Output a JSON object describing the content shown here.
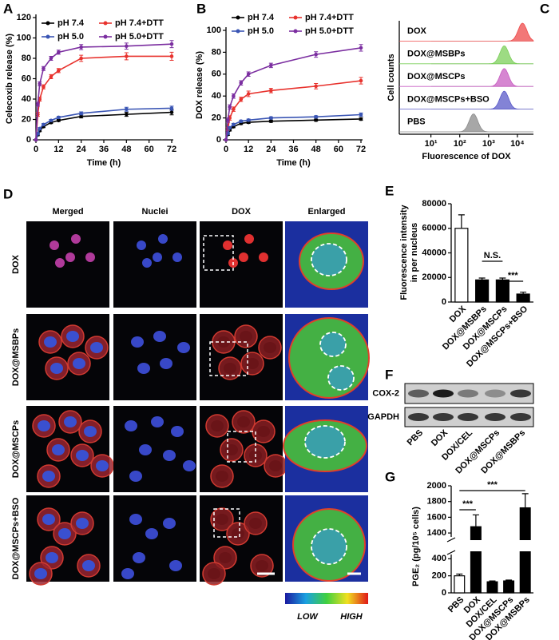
{
  "chart_data": [
    {
      "panel": "A",
      "type": "line",
      "xlabel": "Time  (h)",
      "ylabel": "Celecoxib release (%)",
      "x": [
        0,
        1,
        2,
        4,
        8,
        12,
        24,
        48,
        72
      ],
      "xlim": [
        0,
        72
      ],
      "xticks": [
        0,
        12,
        24,
        36,
        48,
        60,
        72
      ],
      "ylim": [
        0,
        120
      ],
      "yticks": [
        0,
        20,
        40,
        60,
        80,
        100,
        120
      ],
      "series": [
        {
          "name": "pH 7.4",
          "color": "#000000",
          "values": [
            0,
            5,
            9,
            13,
            17,
            19,
            23,
            25,
            27
          ],
          "errors": [
            0,
            1,
            1,
            1,
            1,
            1,
            1.5,
            2,
            2.5
          ]
        },
        {
          "name": "pH 7.4+DTT",
          "color": "#e8332e",
          "values": [
            0,
            25,
            40,
            52,
            62,
            68,
            80,
            82,
            82
          ],
          "errors": [
            0,
            2,
            2,
            2,
            2,
            2,
            3,
            3.5,
            4
          ]
        },
        {
          "name": "pH 5.0",
          "color": "#3a55b4",
          "values": [
            0,
            6,
            11,
            15,
            19,
            22,
            26,
            30,
            31
          ],
          "errors": [
            0,
            1,
            1,
            1,
            1,
            1,
            1.5,
            2,
            2
          ]
        },
        {
          "name": "pH 5.0+DTT",
          "color": "#7b2ea0",
          "values": [
            0,
            35,
            55,
            70,
            80,
            86,
            91,
            92,
            94
          ],
          "errors": [
            0,
            2,
            2,
            2,
            2,
            2,
            2.5,
            3,
            3.5
          ]
        }
      ]
    },
    {
      "panel": "B",
      "type": "line",
      "xlabel": "Time  (h)",
      "ylabel": "DOX release (%)",
      "x": [
        0,
        1,
        2,
        4,
        8,
        12,
        24,
        48,
        72
      ],
      "xlim": [
        0,
        72
      ],
      "xticks": [
        0,
        12,
        24,
        36,
        48,
        60,
        72
      ],
      "ylim": [
        0,
        100
      ],
      "yticks": [
        0,
        20,
        40,
        60,
        80,
        100
      ],
      "series": [
        {
          "name": "pH 7.4",
          "color": "#000000",
          "values": [
            0,
            5,
            9,
            12,
            15,
            16,
            17,
            18,
            19
          ],
          "errors": [
            0,
            1,
            1,
            1,
            1,
            1,
            1,
            1,
            1.2
          ]
        },
        {
          "name": "pH 7.4+DTT",
          "color": "#e8332e",
          "values": [
            0,
            10,
            20,
            28,
            37,
            42,
            45,
            49,
            54
          ],
          "errors": [
            0,
            1.5,
            2,
            2,
            2,
            2.5,
            2,
            2.5,
            3
          ]
        },
        {
          "name": "pH 5.0",
          "color": "#3a55b4",
          "values": [
            0,
            6,
            11,
            14,
            17,
            18,
            20,
            21,
            23
          ],
          "errors": [
            0,
            1,
            1,
            1,
            1,
            1,
            1,
            1,
            1.5
          ]
        },
        {
          "name": "pH 5.0+DTT",
          "color": "#7b2ea0",
          "values": [
            0,
            18,
            30,
            40,
            52,
            60,
            68,
            78,
            84
          ],
          "errors": [
            0,
            2,
            2,
            2,
            2,
            2,
            2,
            2.5,
            3
          ]
        }
      ]
    },
    {
      "panel": "C",
      "type": "ridgeline",
      "xlabel": "Fluorescence of DOX",
      "ylabel": "Cell counts",
      "log_x": true,
      "categories": [
        "DOX",
        "DOX@MSBPs",
        "DOX@MSCPs",
        "DOX@MSCPs+BSO",
        "PBS"
      ],
      "values": [
        15000,
        3500,
        3500,
        3500,
        300
      ],
      "colors": [
        "#ee4a4a",
        "#7ccf5a",
        "#c85ec2",
        "#5a5ac8",
        "#8a8a8a"
      ],
      "xlim": [
        0.8,
        36000
      ],
      "xticks": [
        {
          "value": 10,
          "label": "10¹"
        },
        {
          "value": 100,
          "label": "10²"
        },
        {
          "value": 1000,
          "label": "10³"
        },
        {
          "value": 10000,
          "label": "10⁴"
        }
      ]
    },
    {
      "panel": "E",
      "type": "bar",
      "ylabel": [
        "Fluorescence intensity",
        "in per nucleus"
      ],
      "categories": [
        "DOX",
        "DOX@MSBPs",
        "DOX@MSCPs",
        "DOX@MSCPs+BSO"
      ],
      "values": [
        60000,
        18000,
        18000,
        6500
      ],
      "errors": [
        11000,
        1500,
        1500,
        1500
      ],
      "colors": [
        "#ffffff",
        "#000000",
        "#000000",
        "#000000"
      ],
      "ylim": [
        0,
        80000
      ],
      "yticks": [
        0,
        20000,
        40000,
        60000,
        80000
      ],
      "annotations": [
        "N.S.",
        "***"
      ]
    },
    {
      "panel": "G",
      "type": "bar",
      "ylabel": "PGE₂ (pg/10⁵ cells)",
      "categories": [
        "PBS",
        "DOX",
        "DOX/CEL",
        "DOX@MSCPs",
        "DOX@MSBPs"
      ],
      "values": [
        200,
        1480,
        130,
        140,
        1720
      ],
      "errors": [
        20,
        150,
        10,
        10,
        180
      ],
      "colors": [
        "#ffffff",
        "#000000",
        "#000000",
        "#000000",
        "#000000"
      ],
      "ylim": [
        0,
        2000
      ],
      "ybreak": [
        450,
        1350
      ],
      "yticks": [
        0,
        200,
        400,
        1400,
        1600,
        1800,
        2000
      ],
      "annotations": [
        "***",
        "***"
      ]
    }
  ],
  "panel_d": {
    "label": "D",
    "columns": [
      "Merged",
      "Nuclei",
      "DOX",
      "Enlarged"
    ],
    "column_colors": [
      "#000000",
      "#2a3aa8",
      "#d42a1e",
      "#000000"
    ],
    "rows": [
      "DOX",
      "DOX@MSBPs",
      "DOX@MSCPs",
      "DOX@MSCPs+BSO"
    ],
    "colorbar": {
      "low": "LOW",
      "high": "HIGH"
    }
  },
  "panel_f": {
    "label": "F",
    "rows": [
      "COX-2",
      "GAPDH"
    ],
    "lanes": [
      "PBS",
      "DOX",
      "DOX/CEL",
      "DOX@MSCPs",
      "DOX@MSBPs"
    ]
  }
}
